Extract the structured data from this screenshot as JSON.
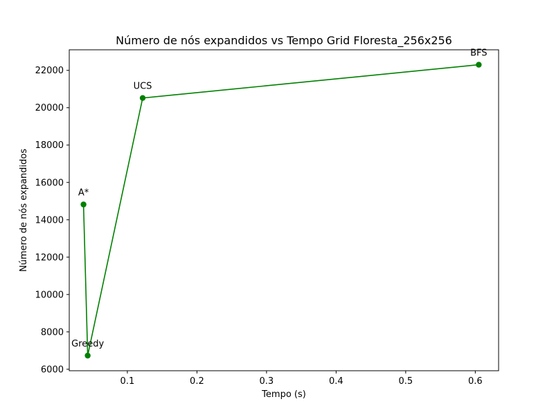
{
  "chart_data": {
    "type": "line",
    "title": "Número de nós expandidos vs Tempo Grid Floresta_256x256",
    "xlabel": "Tempo (s)",
    "ylabel": "Número de nós expandidos",
    "xlim": [
      0.0165,
      0.6335
    ],
    "ylim": [
      5920,
      23100
    ],
    "xticks": [
      0.1,
      0.2,
      0.3,
      0.4,
      0.5,
      0.6
    ],
    "xtick_labels": [
      "0.1",
      "0.2",
      "0.3",
      "0.4",
      "0.5",
      "0.6"
    ],
    "yticks": [
      6000,
      8000,
      10000,
      12000,
      14000,
      16000,
      18000,
      20000,
      22000
    ],
    "ytick_labels": [
      "6000",
      "8000",
      "10000",
      "12000",
      "14000",
      "16000",
      "18000",
      "20000",
      "22000"
    ],
    "grid": false,
    "series": [
      {
        "color": "#008000",
        "points": [
          {
            "label": "A*",
            "x": 0.037,
            "y": 14820
          },
          {
            "label": "Greedy",
            "x": 0.043,
            "y": 6730
          },
          {
            "label": "UCS",
            "x": 0.122,
            "y": 20520
          },
          {
            "label": "BFS",
            "x": 0.605,
            "y": 22300
          }
        ]
      }
    ]
  }
}
